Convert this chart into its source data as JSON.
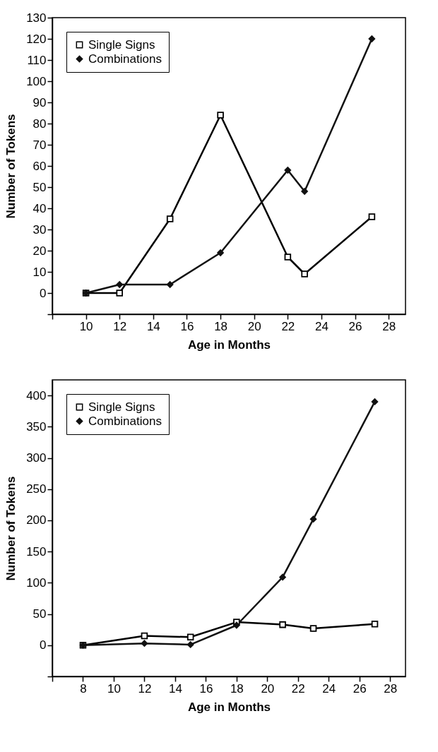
{
  "chart_data": [
    {
      "type": "line",
      "xlabel": "Age in Months",
      "ylabel": "Number of Tokens",
      "xlim": [
        8,
        29
      ],
      "ylim": [
        -10,
        130
      ],
      "xticks": [
        {
          "value": 8,
          "label": null
        },
        10,
        12,
        14,
        16,
        18,
        20,
        22,
        24,
        26,
        28
      ],
      "yticks": [
        {
          "value": -10,
          "label": null
        },
        0,
        10,
        20,
        30,
        40,
        50,
        60,
        70,
        80,
        90,
        100,
        110,
        120,
        130
      ],
      "grid": false,
      "legend": "top left",
      "series": [
        {
          "name": "Single Signs",
          "color": "#000000",
          "marker": "square",
          "x": [
            10,
            12,
            15,
            18,
            22,
            23,
            27
          ],
          "values": [
            0,
            0,
            35,
            84,
            17,
            9,
            36
          ]
        },
        {
          "name": "Combinations",
          "color": "#111111",
          "marker": "diamond",
          "x": [
            10,
            12,
            15,
            18,
            22,
            23,
            27
          ],
          "values": [
            0,
            4,
            4,
            19,
            58,
            48,
            120
          ]
        }
      ]
    },
    {
      "type": "line",
      "xlabel": "Age in Months",
      "ylabel": "Number of Tokens",
      "xlim": [
        6,
        29
      ],
      "ylim": [
        -50,
        425
      ],
      "xticks": [
        {
          "value": 6,
          "label": null
        },
        8,
        10,
        12,
        14,
        16,
        18,
        20,
        22,
        24,
        26,
        28
      ],
      "yticks": [
        {
          "value": -50,
          "label": null
        },
        0,
        50,
        100,
        150,
        200,
        250,
        300,
        350,
        400
      ],
      "grid": false,
      "legend": "top left",
      "series": [
        {
          "name": "Single Signs",
          "color": "#000000",
          "marker": "square",
          "x": [
            8,
            12,
            15,
            18,
            21,
            23,
            27
          ],
          "values": [
            0,
            15,
            13,
            37,
            33,
            27,
            34
          ]
        },
        {
          "name": "Combinations",
          "color": "#111111",
          "marker": "diamond",
          "x": [
            8,
            12,
            15,
            18,
            21,
            23,
            27
          ],
          "values": [
            0,
            3,
            1,
            32,
            109,
            202,
            390
          ]
        }
      ]
    }
  ]
}
